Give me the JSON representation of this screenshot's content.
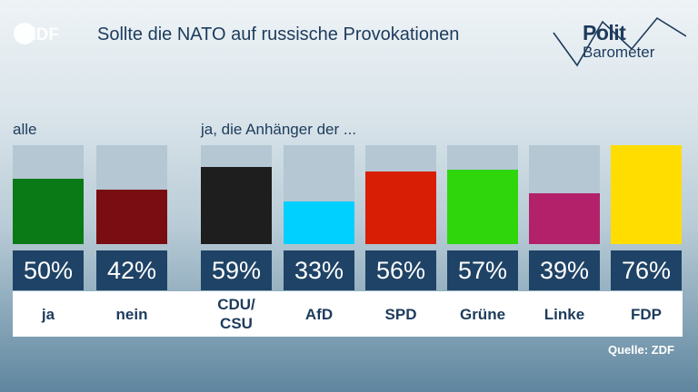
{
  "logos": {
    "zdf": "ZDF",
    "politbarometer_1": "Polit",
    "politbarometer_2": "Barometer"
  },
  "header": {
    "title": "Sollte die NATO auf russische Provokationen"
  },
  "footer": {
    "source": "Quelle: ZDF"
  },
  "chart_data": {
    "type": "bar",
    "title": "Sollte die NATO auf russische Provokationen",
    "groups": [
      {
        "label": "alle",
        "categories": [
          "ja",
          "nein"
        ]
      },
      {
        "label": "ja, die Anhänger der ...",
        "categories": [
          "CDU/\nCSU",
          "AfD",
          "SPD",
          "Grüne",
          "Linke",
          "FDP"
        ]
      }
    ],
    "categories": [
      "ja",
      "nein",
      "CDU/\nCSU",
      "AfD",
      "SPD",
      "Grüne",
      "Linke",
      "FDP"
    ],
    "values": [
      50,
      42,
      59,
      33,
      56,
      57,
      39,
      76
    ],
    "value_labels": [
      "50%",
      "42%",
      "59%",
      "33%",
      "56%",
      "57%",
      "39%",
      "76%"
    ],
    "colors": [
      "#0a7a16",
      "#7a0d12",
      "#1e1e1e",
      "#00d0ff",
      "#d81e05",
      "#2fd60b",
      "#b3216b",
      "#ffdd00"
    ],
    "unit": "%",
    "ylim": [
      0,
      76
    ],
    "track_color": "#b4c7d3"
  }
}
